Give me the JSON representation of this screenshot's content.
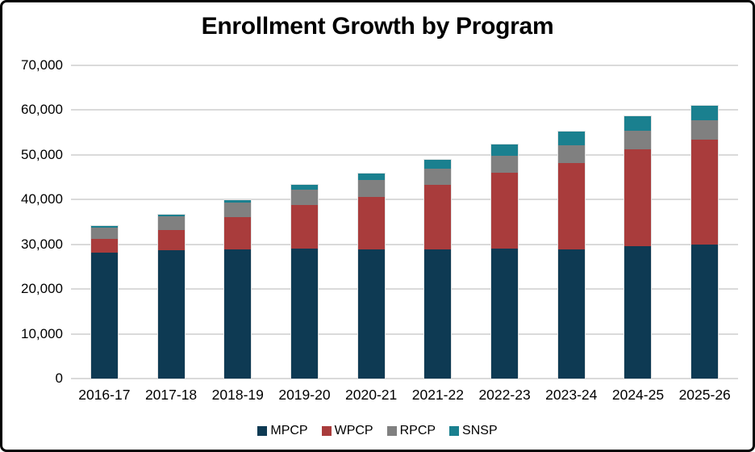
{
  "title": "Enrollment Growth by Program",
  "chart_data": {
    "type": "bar",
    "stacked": true,
    "title": "Enrollment Growth by Program",
    "xlabel": "",
    "ylabel": "",
    "grid": "horizontal",
    "legend_position": "bottom",
    "ylim": [
      0,
      70000
    ],
    "ytick_step": 10000,
    "ytick_labels": [
      "70,000",
      "60,000",
      "50,000",
      "40,000",
      "30,000",
      "20,000",
      "10,000",
      "0"
    ],
    "ytick_values": [
      70000,
      60000,
      50000,
      40000,
      30000,
      20000,
      10000,
      0
    ],
    "categories": [
      "2016-17",
      "2017-18",
      "2018-19",
      "2019-20",
      "2020-21",
      "2021-22",
      "2022-23",
      "2023-24",
      "2024-25",
      "2025-26"
    ],
    "series": [
      {
        "name": "MPCP",
        "color": "#0e3a53",
        "values": [
          28200,
          28700,
          28900,
          29000,
          28800,
          28900,
          29000,
          28900,
          29600,
          30000
        ]
      },
      {
        "name": "WPCP",
        "color": "#a93c3c",
        "values": [
          3100,
          4500,
          7100,
          9800,
          11800,
          14400,
          17000,
          19300,
          21600,
          23400
        ]
      },
      {
        "name": "RPCP",
        "color": "#808080",
        "values": [
          2500,
          3100,
          3300,
          3500,
          3800,
          3700,
          3800,
          3900,
          4200,
          4300
        ]
      },
      {
        "name": "SNSP",
        "color": "#1a808f",
        "values": [
          300,
          400,
          600,
          1000,
          1400,
          1900,
          2500,
          3100,
          3300,
          3300
        ]
      }
    ],
    "totals": [
      34100,
      36700,
      39900,
      43300,
      45800,
      48900,
      52300,
      55200,
      58700,
      61000
    ],
    "colors": {
      "gridline": "#dadada",
      "bar_outline": "#e3e3e3",
      "background": "#ffffff",
      "border": "#000000",
      "text": "#000000"
    }
  }
}
